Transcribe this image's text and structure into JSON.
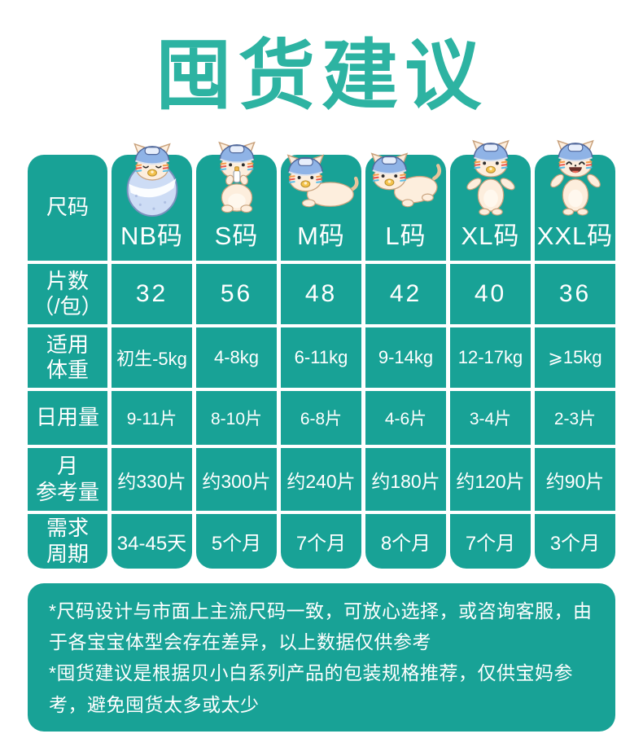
{
  "title": "囤货建议",
  "colors": {
    "cell_teal": "#18a296",
    "title_teal": "#2db3a2",
    "text_white": "#ffffff",
    "page_bg": "#ffffff",
    "helmet_blue": "#8fb3e6",
    "kitten_cream": "#fdeedd",
    "blanket_blue": "#cddcf5"
  },
  "table": {
    "row_headers": [
      "尺码",
      "片数\n（/包）",
      "适用\n体重",
      "日用量",
      "月\n参考量",
      "需求\n周期"
    ],
    "columns": [
      {
        "label": "NB码",
        "icon": "swaddled-kitten-icon",
        "values": [
          "32",
          "初生-5kg",
          "9-11片",
          "约330片",
          "34-45天"
        ]
      },
      {
        "label": "S码",
        "icon": "sitting-kitten-icon",
        "values": [
          "56",
          "4-8kg",
          "8-10片",
          "约300片",
          "5个月"
        ]
      },
      {
        "label": "M码",
        "icon": "lying-kitten-icon",
        "values": [
          "48",
          "6-11kg",
          "6-8片",
          "约240片",
          "7个月"
        ]
      },
      {
        "label": "L码",
        "icon": "crawling-kitten-icon",
        "values": [
          "42",
          "9-14kg",
          "4-6片",
          "约180片",
          "8个月"
        ]
      },
      {
        "label": "XL码",
        "icon": "standing-kitten-icon",
        "values": [
          "40",
          "12-17kg",
          "3-4片",
          "约120片",
          "7个月"
        ]
      },
      {
        "label": "XXL码",
        "icon": "laughing-kitten-icon",
        "values": [
          "36",
          "⩾15kg",
          "2-3片",
          "约90片",
          "3个月"
        ]
      }
    ]
  },
  "notes": [
    "*尺码设计与市面上主流尺码一致，可放心选择，或咨询客服，由于各宝宝体型会存在差异，以上数据仅供参考",
    "*囤货建议是根据贝小白系列产品的包装规格推荐，仅供宝妈参考，避免囤货太多或太少"
  ]
}
